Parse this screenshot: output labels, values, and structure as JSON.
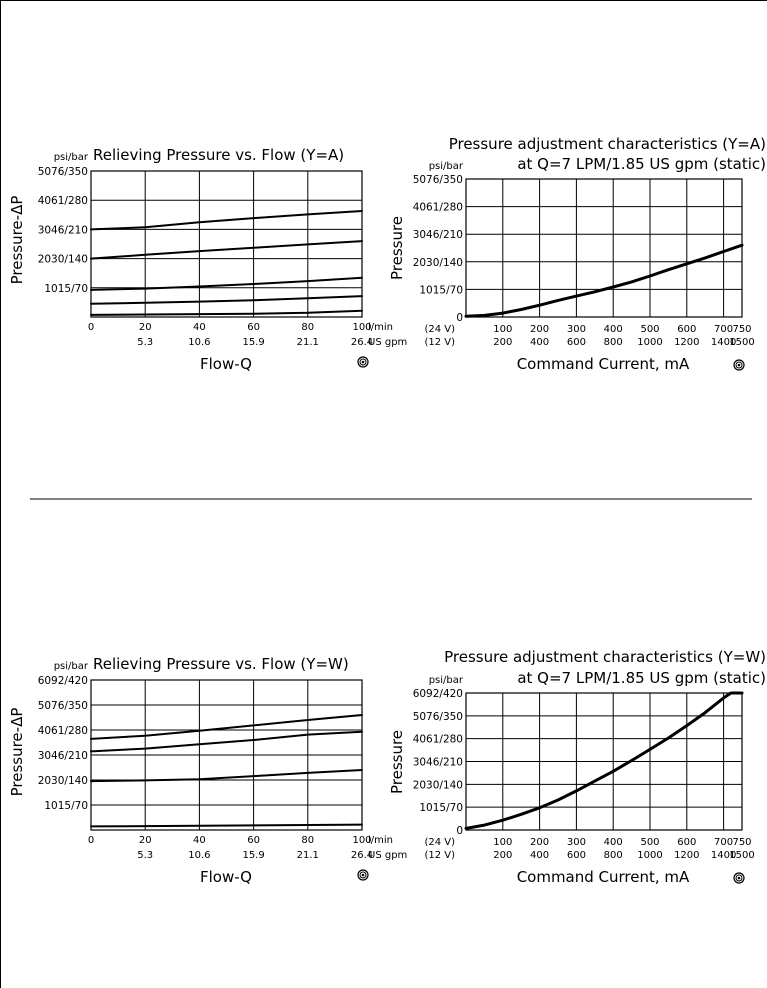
{
  "chart_data": [
    {
      "type": "line",
      "title": "Relieving Pressure vs. Flow (Y=A)",
      "unit_label": "psi/bar",
      "ylabel": "Pressure-ΔP",
      "xlabel": "Flow-Q",
      "x_unit_primary": "l/min",
      "x_unit_secondary": "US gpm",
      "xlim": [
        0,
        100
      ],
      "ylim": [
        0,
        350
      ],
      "grid": true,
      "x_ticks": [
        {
          "value": 0,
          "primary": "0",
          "secondary": ""
        },
        {
          "value": 20,
          "primary": "20",
          "secondary": "5.3"
        },
        {
          "value": 40,
          "primary": "40",
          "secondary": "10.6"
        },
        {
          "value": 60,
          "primary": "60",
          "secondary": "15.9"
        },
        {
          "value": 80,
          "primary": "80",
          "secondary": "21.1"
        },
        {
          "value": 100,
          "primary": "100",
          "secondary": "26.4"
        }
      ],
      "y_ticks": [
        {
          "value": 70,
          "label": "1015/70"
        },
        {
          "value": 140,
          "label": "2030/140"
        },
        {
          "value": 210,
          "label": "3046/210"
        },
        {
          "value": 280,
          "label": "4061/280"
        },
        {
          "value": 350,
          "label": "5076/350"
        }
      ],
      "series": [
        {
          "x": [
            0,
            20,
            40,
            60,
            80,
            100
          ],
          "y": [
            210,
            215,
            227,
            237,
            246,
            254
          ]
        },
        {
          "x": [
            0,
            20,
            40,
            60,
            80,
            100
          ],
          "y": [
            140,
            149,
            158,
            166,
            174,
            182
          ]
        },
        {
          "x": [
            0,
            20,
            40,
            60,
            80,
            100
          ],
          "y": [
            65,
            68,
            73,
            79,
            86,
            94
          ]
        },
        {
          "x": [
            0,
            20,
            40,
            60,
            80,
            100
          ],
          "y": [
            32,
            34,
            37,
            40,
            45,
            50
          ]
        },
        {
          "x": [
            0,
            20,
            40,
            60,
            80,
            100
          ],
          "y": [
            5,
            6,
            7,
            8,
            10,
            15
          ]
        }
      ],
      "stroke_width": 2
    },
    {
      "type": "line",
      "title": "Pressure adjustment characteristics (Y=A)",
      "subtitle": "at Q=7 LPM/1.85 US gpm (static)",
      "unit_label": "psi/bar",
      "ylabel": "Pressure",
      "xlabel": "Command Current, mA",
      "x_row_labels": [
        "(24 V)",
        "(12 V)"
      ],
      "xlim": [
        0,
        750
      ],
      "ylim": [
        0,
        350
      ],
      "grid": true,
      "x_ticks": [
        {
          "value": 0,
          "primary": "",
          "secondary": ""
        },
        {
          "value": 100,
          "primary": "100",
          "secondary": "200"
        },
        {
          "value": 200,
          "primary": "200",
          "secondary": "400"
        },
        {
          "value": 300,
          "primary": "300",
          "secondary": "600"
        },
        {
          "value": 400,
          "primary": "400",
          "secondary": "800"
        },
        {
          "value": 500,
          "primary": "500",
          "secondary": "1000"
        },
        {
          "value": 600,
          "primary": "600",
          "secondary": "1200"
        },
        {
          "value": 700,
          "primary": "700",
          "secondary": "1400"
        },
        {
          "value": 750,
          "primary": "750",
          "secondary": "1500"
        }
      ],
      "y_ticks": [
        {
          "value": 0,
          "label": "0"
        },
        {
          "value": 70,
          "label": "1015/70"
        },
        {
          "value": 140,
          "label": "2030/140"
        },
        {
          "value": 210,
          "label": "3046/210"
        },
        {
          "value": 280,
          "label": "4061/280"
        },
        {
          "value": 350,
          "label": "5076/350"
        }
      ],
      "series": [
        {
          "x": [
            0,
            50,
            100,
            150,
            200,
            250,
            300,
            350,
            400,
            450,
            500,
            550,
            600,
            650,
            700,
            750
          ],
          "y": [
            2,
            4,
            10,
            19,
            30,
            42,
            53,
            64,
            76,
            89,
            104,
            120,
            135,
            150,
            166,
            182
          ]
        }
      ],
      "stroke_width": 3
    },
    {
      "type": "line",
      "title": "Relieving Pressure vs. Flow (Y=W)",
      "unit_label": "psi/bar",
      "ylabel": "Pressure-ΔP",
      "xlabel": "Flow-Q",
      "x_unit_primary": "l/min",
      "x_unit_secondary": "US gpm",
      "xlim": [
        0,
        100
      ],
      "ylim": [
        0,
        420
      ],
      "grid": true,
      "x_ticks": [
        {
          "value": 0,
          "primary": "0",
          "secondary": ""
        },
        {
          "value": 20,
          "primary": "20",
          "secondary": "5.3"
        },
        {
          "value": 40,
          "primary": "40",
          "secondary": "10.6"
        },
        {
          "value": 60,
          "primary": "60",
          "secondary": "15.9"
        },
        {
          "value": 80,
          "primary": "80",
          "secondary": "21.1"
        },
        {
          "value": 100,
          "primary": "100",
          "secondary": "26.4"
        }
      ],
      "y_ticks": [
        {
          "value": 70,
          "label": "1015/70"
        },
        {
          "value": 140,
          "label": "2030/140"
        },
        {
          "value": 210,
          "label": "3046/210"
        },
        {
          "value": 280,
          "label": "4061/280"
        },
        {
          "value": 350,
          "label": "5076/350"
        },
        {
          "value": 420,
          "label": "6092/420"
        }
      ],
      "series": [
        {
          "x": [
            0,
            20,
            40,
            60,
            80,
            100
          ],
          "y": [
            255,
            264,
            278,
            293,
            308,
            322
          ]
        },
        {
          "x": [
            0,
            20,
            40,
            60,
            80,
            100
          ],
          "y": [
            220,
            228,
            240,
            252,
            267,
            275
          ]
        },
        {
          "x": [
            0,
            20,
            40,
            60,
            80,
            100
          ],
          "y": [
            137,
            139,
            142,
            151,
            160,
            168
          ]
        },
        {
          "x": [
            0,
            20,
            40,
            60,
            80,
            100
          ],
          "y": [
            10,
            11,
            12,
            13,
            14,
            15
          ]
        }
      ],
      "stroke_width": 2
    },
    {
      "type": "line",
      "title": "Pressure adjustment characteristics (Y=W)",
      "subtitle": "at Q=7 LPM/1.85 US gpm (static)",
      "unit_label": "psi/bar",
      "ylabel": "Pressure",
      "xlabel": "Command Current, mA",
      "x_row_labels": [
        "(24 V)",
        "(12 V)"
      ],
      "xlim": [
        0,
        750
      ],
      "ylim": [
        0,
        420
      ],
      "grid": true,
      "x_ticks": [
        {
          "value": 0,
          "primary": "",
          "secondary": ""
        },
        {
          "value": 100,
          "primary": "100",
          "secondary": "200"
        },
        {
          "value": 200,
          "primary": "200",
          "secondary": "400"
        },
        {
          "value": 300,
          "primary": "300",
          "secondary": "600"
        },
        {
          "value": 400,
          "primary": "400",
          "secondary": "800"
        },
        {
          "value": 500,
          "primary": "500",
          "secondary": "1000"
        },
        {
          "value": 600,
          "primary": "600",
          "secondary": "1200"
        },
        {
          "value": 700,
          "primary": "700",
          "secondary": "1400"
        },
        {
          "value": 750,
          "primary": "750",
          "secondary": "1500"
        }
      ],
      "y_ticks": [
        {
          "value": 0,
          "label": "0"
        },
        {
          "value": 70,
          "label": "1015/70"
        },
        {
          "value": 140,
          "label": "2030/140"
        },
        {
          "value": 210,
          "label": "3046/210"
        },
        {
          "value": 280,
          "label": "4061/280"
        },
        {
          "value": 350,
          "label": "5076/350"
        },
        {
          "value": 420,
          "label": "6092/420"
        }
      ],
      "series": [
        {
          "x": [
            0,
            50,
            100,
            150,
            200,
            250,
            300,
            350,
            400,
            450,
            500,
            550,
            600,
            650,
            700,
            720,
            750
          ],
          "y": [
            5,
            15,
            30,
            48,
            68,
            92,
            120,
            150,
            180,
            213,
            247,
            282,
            320,
            360,
            405,
            420,
            420
          ]
        }
      ],
      "stroke_width": 3
    }
  ]
}
